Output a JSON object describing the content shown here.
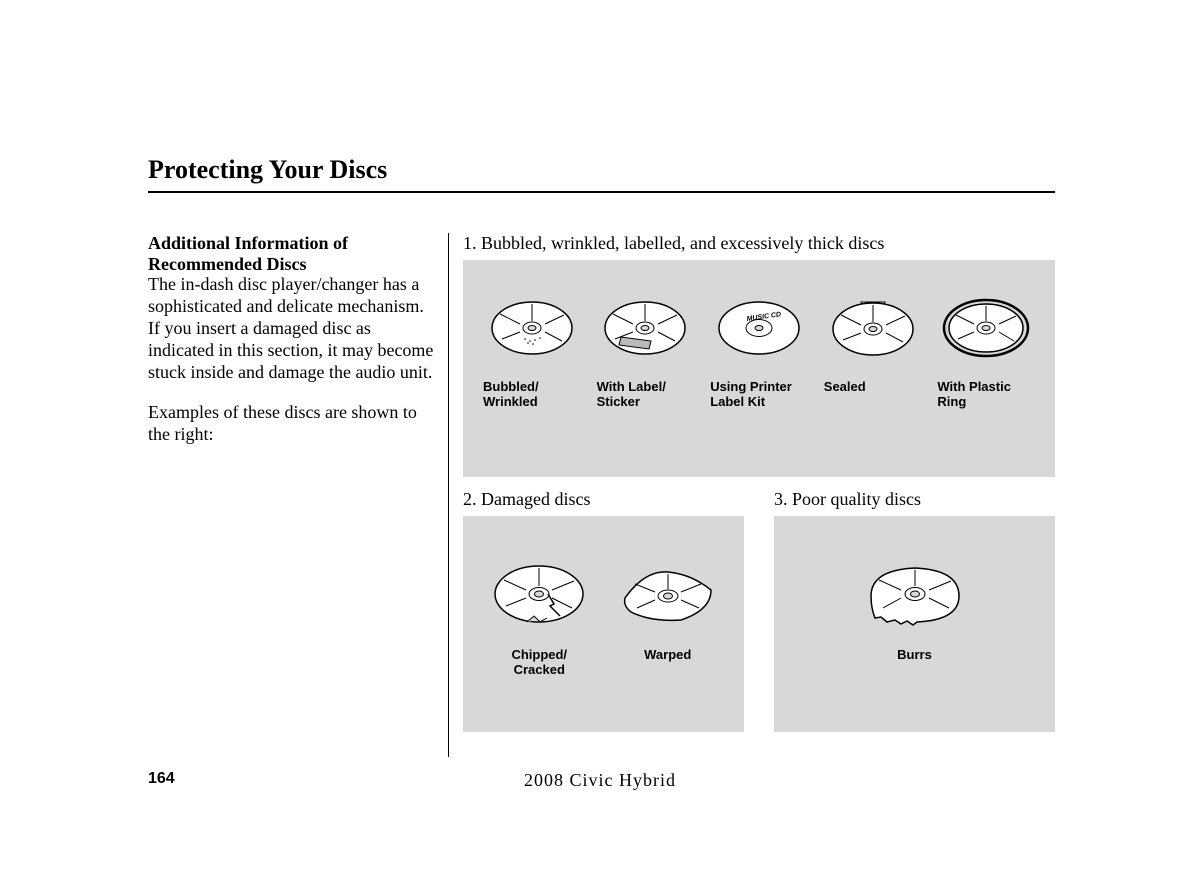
{
  "title": "Protecting Your Discs",
  "left": {
    "heading": "Additional Information of Recommended Discs",
    "para1": "The in-dash disc player/changer has a sophisticated and delicate mechanism. If you insert a damaged disc as indicated in this section, it may become stuck inside and damage the audio unit.",
    "para2": "Examples of these discs are shown to the right:"
  },
  "section1": {
    "label": "1. Bubbled, wrinkled, labelled, and excessively thick discs",
    "items": [
      {
        "label": "Bubbled/\nWrinkled"
      },
      {
        "label": "With Label/\nSticker"
      },
      {
        "label": "Using Printer\nLabel Kit"
      },
      {
        "label": "Sealed"
      },
      {
        "label": "With Plastic\nRing"
      }
    ]
  },
  "section2": {
    "label": "2. Damaged discs",
    "items": [
      {
        "label": "Chipped/\nCracked"
      },
      {
        "label": "Warped"
      }
    ]
  },
  "section3": {
    "label": "3.   Poor quality discs",
    "items": [
      {
        "label": "Burrs"
      }
    ]
  },
  "footer": {
    "page": "164",
    "text": "2008  Civic  Hybrid"
  },
  "colors": {
    "box_bg": "#d7d8d9",
    "text": "#000000"
  }
}
